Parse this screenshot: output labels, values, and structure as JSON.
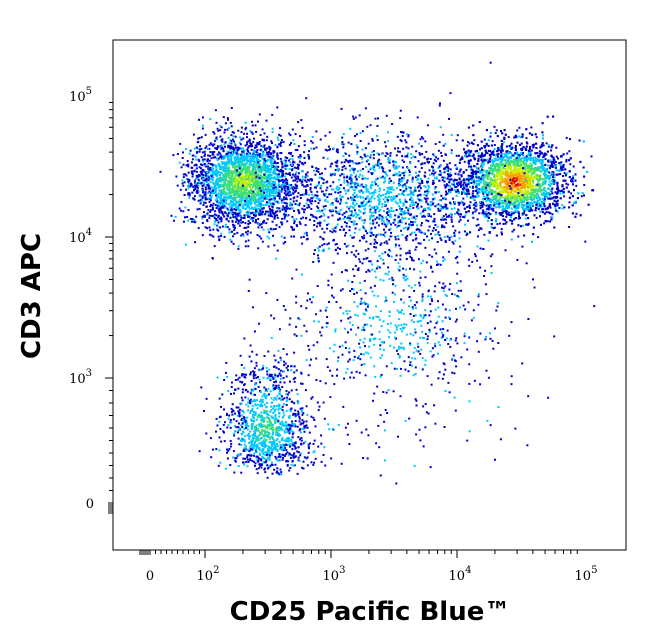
{
  "chart_data": {
    "type": "scatter",
    "subtype": "flow-cytometry-density-dot-plot",
    "title": "",
    "xlabel": "CD25 Pacific Blue™",
    "ylabel": "CD3 APC",
    "x_scale": "biexponential",
    "y_scale": "biexponential",
    "xlim": [
      -100,
      250000
    ],
    "ylim": [
      -100,
      250000
    ],
    "grid": false,
    "x_ticks": [
      {
        "value": 0,
        "label": "0",
        "exp": ""
      },
      {
        "value": 100,
        "label": "10",
        "exp": "2"
      },
      {
        "value": 1000,
        "label": "10",
        "exp": "3"
      },
      {
        "value": 10000,
        "label": "10",
        "exp": "4"
      },
      {
        "value": 100000,
        "label": "10",
        "exp": "5"
      }
    ],
    "y_ticks": [
      {
        "value": 0,
        "label": "0",
        "exp": ""
      },
      {
        "value": 1000,
        "label": "10",
        "exp": "3"
      },
      {
        "value": 10000,
        "label": "10",
        "exp": "4"
      },
      {
        "value": 100000,
        "label": "10",
        "exp": "5"
      }
    ],
    "density_colors": [
      "#0000c8",
      "#00c8ff",
      "#40e070",
      "#c8f000",
      "#ffa000",
      "#e00000"
    ],
    "populations": [
      {
        "center_x": 200,
        "center_y": 25000,
        "spread_x": 0.22,
        "spread_y": 0.16,
        "events": 2600,
        "peak_level": 3
      },
      {
        "center_x": 28000,
        "center_y": 25000,
        "spread_x": 0.22,
        "spread_y": 0.14,
        "events": 3400,
        "peak_level": 5
      },
      {
        "center_x": 2500,
        "center_y": 20000,
        "spread_x": 0.45,
        "spread_y": 0.22,
        "events": 1600,
        "peak_level": 1
      },
      {
        "center_x": 300,
        "center_y": 600,
        "spread_x": 0.17,
        "spread_y": 0.16,
        "events": 1100,
        "peak_level": 2
      },
      {
        "center_x": 3000,
        "center_y": 2500,
        "spread_x": 0.45,
        "spread_y": 0.35,
        "events": 700,
        "peak_level": 1
      }
    ]
  }
}
